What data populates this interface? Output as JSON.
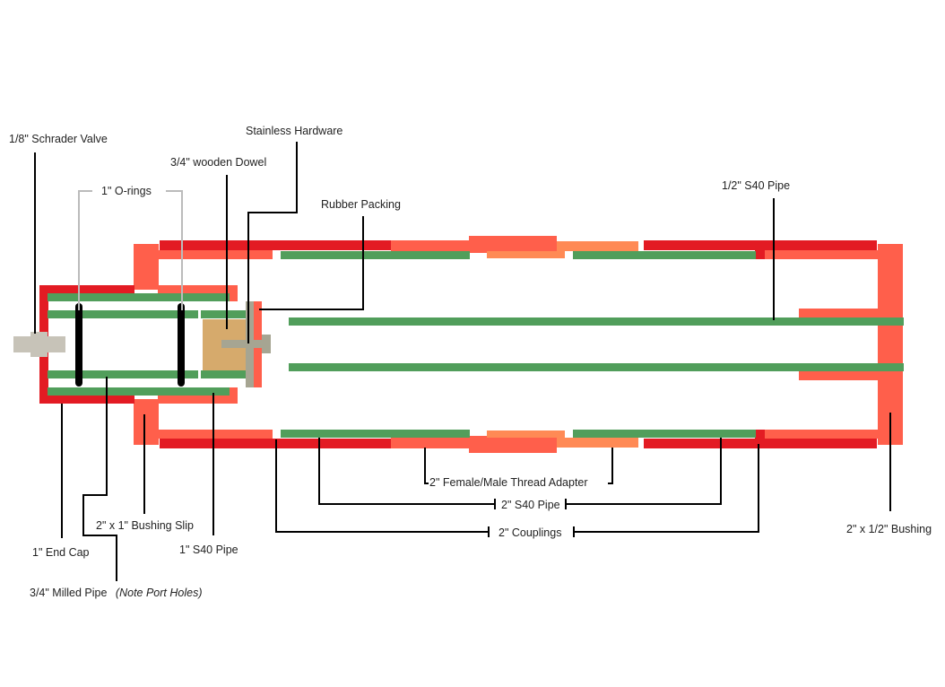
{
  "colors": {
    "coupling_red": "#E31B23",
    "fitting_coral": "#FF5F4B",
    "adapter_orange": "#FF8A55",
    "pipe_green": "#519E5B",
    "dowel_tan": "#D6AA6C",
    "hardware_gray": "#A6A592",
    "valve_gray": "#C7C3B8",
    "oring_black": "#000000"
  },
  "labels": {
    "schrader_valve": "1/8\" Schrader Valve",
    "o_rings": "1\" O-rings",
    "wooden_dowel": "3/4\" wooden Dowel",
    "stainless_hardware": "Stainless Hardware",
    "rubber_packing": "Rubber Packing",
    "half_inch_pipe": "1/2\" S40 Pipe",
    "end_cap": "1\" End Cap",
    "milled_pipe": "3/4\" Milled Pipe",
    "milled_pipe_note": "(Note Port Holes)",
    "bushing_slip": "2\" x 1\" Bushing Slip",
    "one_inch_pipe": "1\" S40 Pipe",
    "thread_adapter": "2\" Female/Male Thread Adapter",
    "two_inch_pipe": "2\" S40 Pipe",
    "couplings": "2\" Couplings",
    "bushing_half": "2\" x 1/2\" Bushing"
  }
}
